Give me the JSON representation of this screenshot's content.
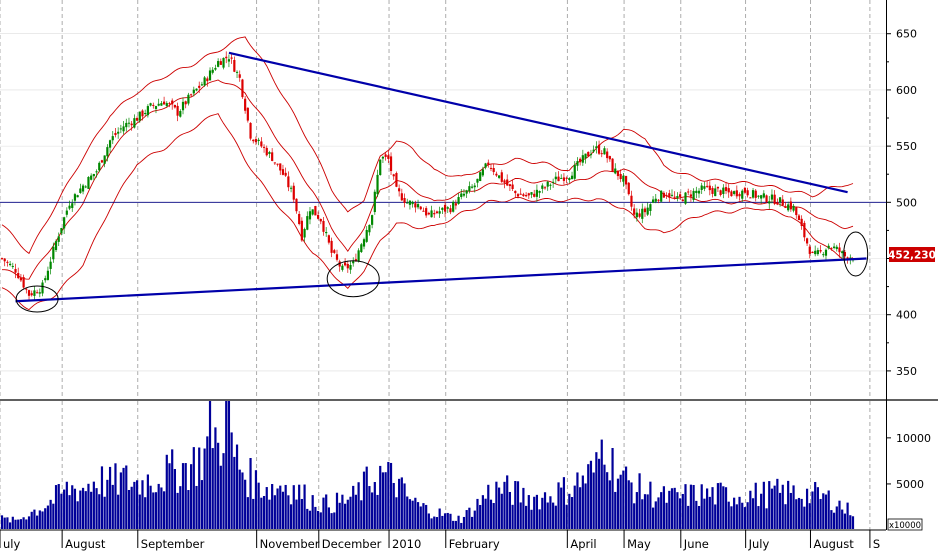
{
  "chart_data": {
    "type": "candlestick-with-volume",
    "price_axis": {
      "ticks": [
        350,
        400,
        450,
        500,
        550,
        600,
        650
      ],
      "tick_labels": [
        "350",
        "400",
        "",
        "500",
        "550",
        "600",
        "650"
      ],
      "ylim": [
        325,
        680
      ]
    },
    "volume_axis": {
      "ticks": [
        5000,
        10000
      ],
      "tick_labels": [
        "5000",
        "10000"
      ],
      "unit_label": "x10000",
      "ylim": [
        0,
        14000
      ]
    },
    "x_axis": {
      "labels": [
        "uly",
        "August",
        "September",
        "November",
        "December",
        "2010",
        "February",
        "April",
        "May",
        "June",
        "July",
        "August",
        "S"
      ],
      "label_positions": [
        0,
        23,
        51,
        95,
        118,
        144,
        165,
        210,
        231,
        252,
        276,
        300,
        322
      ]
    },
    "last_price": {
      "value": 452.23,
      "label": "452,230"
    },
    "reference_line": {
      "value": 500
    },
    "trend_lines": [
      {
        "name": "upper",
        "from": [
          84,
          633
        ],
        "to": [
          313,
          509
        ]
      },
      {
        "name": "lower",
        "from": [
          5,
          412
        ],
        "to": [
          320,
          450
        ]
      }
    ],
    "circled_points": [
      {
        "x": 13,
        "y": 414
      },
      {
        "x": 130,
        "y": 432
      },
      {
        "x": 316,
        "y": 454
      }
    ],
    "bands": {
      "upper_anchors": [
        [
          0,
          480
        ],
        [
          10,
          455
        ],
        [
          20,
          498
        ],
        [
          30,
          540
        ],
        [
          40,
          578
        ],
        [
          50,
          598
        ],
        [
          60,
          612
        ],
        [
          70,
          622
        ],
        [
          80,
          635
        ],
        [
          90,
          648
        ],
        [
          98,
          620
        ],
        [
          108,
          578
        ],
        [
          115,
          548
        ],
        [
          122,
          512
        ],
        [
          128,
          490
        ],
        [
          134,
          503
        ],
        [
          140,
          540
        ],
        [
          146,
          555
        ],
        [
          152,
          548
        ],
        [
          160,
          528
        ],
        [
          170,
          522
        ],
        [
          180,
          532
        ],
        [
          190,
          538
        ],
        [
          200,
          535
        ],
        [
          210,
          528
        ],
        [
          220,
          548
        ],
        [
          230,
          565
        ],
        [
          238,
          558
        ],
        [
          245,
          532
        ],
        [
          252,
          525
        ],
        [
          260,
          520
        ],
        [
          270,
          518
        ],
        [
          280,
          516
        ],
        [
          292,
          510
        ],
        [
          300,
          506
        ],
        [
          306,
          512
        ],
        [
          312,
          516
        ]
      ],
      "middle_anchors": [
        [
          0,
          440
        ],
        [
          10,
          432
        ],
        [
          20,
          466
        ],
        [
          30,
          500
        ],
        [
          40,
          545
        ],
        [
          50,
          572
        ],
        [
          60,
          585
        ],
        [
          70,
          595
        ],
        [
          80,
          610
        ],
        [
          90,
          598
        ],
        [
          98,
          570
        ],
        [
          108,
          535
        ],
        [
          115,
          510
        ],
        [
          122,
          478
        ],
        [
          128,
          455
        ],
        [
          134,
          478
        ],
        [
          140,
          510
        ],
        [
          146,
          520
        ],
        [
          152,
          512
        ],
        [
          160,
          500
        ],
        [
          170,
          508
        ],
        [
          180,
          515
        ],
        [
          190,
          520
        ],
        [
          200,
          518
        ],
        [
          210,
          516
        ],
        [
          220,
          525
        ],
        [
          230,
          530
        ],
        [
          238,
          518
        ],
        [
          245,
          506
        ],
        [
          252,
          504
        ],
        [
          260,
          502
        ],
        [
          270,
          500
        ],
        [
          280,
          500
        ],
        [
          292,
          497
        ],
        [
          300,
          490
        ],
        [
          306,
          482
        ],
        [
          312,
          478
        ]
      ],
      "lower_anchors": [
        [
          0,
          424
        ],
        [
          10,
          405
        ],
        [
          20,
          418
        ],
        [
          30,
          445
        ],
        [
          40,
          495
        ],
        [
          50,
          535
        ],
        [
          60,
          548
        ],
        [
          70,
          565
        ],
        [
          80,
          580
        ],
        [
          90,
          538
        ],
        [
          98,
          510
        ],
        [
          108,
          480
        ],
        [
          115,
          455
        ],
        [
          122,
          438
        ],
        [
          128,
          422
        ],
        [
          134,
          440
        ],
        [
          140,
          465
        ],
        [
          146,
          482
        ],
        [
          152,
          478
        ],
        [
          160,
          478
        ],
        [
          170,
          490
        ],
        [
          180,
          500
        ],
        [
          190,
          503
        ],
        [
          200,
          502
        ],
        [
          210,
          502
        ],
        [
          220,
          503
        ],
        [
          230,
          495
        ],
        [
          238,
          478
        ],
        [
          245,
          472
        ],
        [
          252,
          482
        ],
        [
          260,
          490
        ],
        [
          270,
          492
        ],
        [
          280,
          495
        ],
        [
          292,
          488
        ],
        [
          300,
          470
        ],
        [
          306,
          458
        ],
        [
          312,
          450
        ]
      ]
    },
    "price_anchors": [
      [
        0,
        450
      ],
      [
        5,
        440
      ],
      [
        10,
        418
      ],
      [
        15,
        425
      ],
      [
        20,
        465
      ],
      [
        25,
        500
      ],
      [
        30,
        515
      ],
      [
        35,
        528
      ],
      [
        40,
        555
      ],
      [
        45,
        568
      ],
      [
        50,
        575
      ],
      [
        55,
        585
      ],
      [
        60,
        590
      ],
      [
        65,
        580
      ],
      [
        70,
        595
      ],
      [
        75,
        608
      ],
      [
        80,
        625
      ],
      [
        84,
        630
      ],
      [
        88,
        610
      ],
      [
        92,
        560
      ],
      [
        96,
        550
      ],
      [
        100,
        540
      ],
      [
        104,
        525
      ],
      [
        108,
        505
      ],
      [
        111,
        470
      ],
      [
        114,
        495
      ],
      [
        118,
        485
      ],
      [
        122,
        455
      ],
      [
        126,
        440
      ],
      [
        130,
        445
      ],
      [
        134,
        470
      ],
      [
        137,
        490
      ],
      [
        140,
        540
      ],
      [
        143,
        538
      ],
      [
        146,
        510
      ],
      [
        150,
        500
      ],
      [
        154,
        498
      ],
      [
        158,
        488
      ],
      [
        162,
        492
      ],
      [
        166,
        495
      ],
      [
        170,
        505
      ],
      [
        175,
        515
      ],
      [
        180,
        535
      ],
      [
        185,
        520
      ],
      [
        190,
        508
      ],
      [
        195,
        505
      ],
      [
        200,
        512
      ],
      [
        205,
        520
      ],
      [
        210,
        525
      ],
      [
        215,
        538
      ],
      [
        219,
        548
      ],
      [
        223,
        545
      ],
      [
        226,
        530
      ],
      [
        230,
        520
      ],
      [
        234,
        488
      ],
      [
        238,
        492
      ],
      [
        242,
        505
      ],
      [
        246,
        508
      ],
      [
        250,
        502
      ],
      [
        255,
        508
      ],
      [
        260,
        512
      ],
      [
        265,
        510
      ],
      [
        270,
        508
      ],
      [
        275,
        510
      ],
      [
        280,
        505
      ],
      [
        285,
        503
      ],
      [
        289,
        500
      ],
      [
        293,
        495
      ],
      [
        297,
        470
      ],
      [
        300,
        452
      ],
      [
        303,
        455
      ],
      [
        306,
        462
      ],
      [
        309,
        458
      ],
      [
        312,
        452
      ]
    ],
    "volume_anchors": [
      [
        0,
        1200
      ],
      [
        5,
        1000
      ],
      [
        10,
        1800
      ],
      [
        15,
        2500
      ],
      [
        20,
        3500
      ],
      [
        25,
        4500
      ],
      [
        30,
        4500
      ],
      [
        35,
        5500
      ],
      [
        40,
        5000
      ],
      [
        45,
        5500
      ],
      [
        50,
        5000
      ],
      [
        55,
        5500
      ],
      [
        60,
        6000
      ],
      [
        65,
        6500
      ],
      [
        70,
        7000
      ],
      [
        75,
        8000
      ],
      [
        78,
        12000
      ],
      [
        80,
        8500
      ],
      [
        83,
        13500
      ],
      [
        86,
        8000
      ],
      [
        90,
        6000
      ],
      [
        95,
        5000
      ],
      [
        100,
        4500
      ],
      [
        105,
        5000
      ],
      [
        110,
        4000
      ],
      [
        115,
        3200
      ],
      [
        120,
        2800
      ],
      [
        125,
        3000
      ],
      [
        130,
        3500
      ],
      [
        135,
        5000
      ],
      [
        140,
        6000
      ],
      [
        145,
        5500
      ],
      [
        150,
        3500
      ],
      [
        155,
        2500
      ],
      [
        160,
        2000
      ],
      [
        165,
        1500
      ],
      [
        170,
        1200
      ],
      [
        175,
        2500
      ],
      [
        180,
        4000
      ],
      [
        185,
        4500
      ],
      [
        190,
        4000
      ],
      [
        195,
        3500
      ],
      [
        200,
        3500
      ],
      [
        205,
        4000
      ],
      [
        210,
        4500
      ],
      [
        215,
        5500
      ],
      [
        220,
        6500
      ],
      [
        223,
        10500
      ],
      [
        226,
        7000
      ],
      [
        230,
        5500
      ],
      [
        235,
        4500
      ],
      [
        240,
        4000
      ],
      [
        245,
        3500
      ],
      [
        250,
        3500
      ],
      [
        255,
        3800
      ],
      [
        260,
        3800
      ],
      [
        265,
        3800
      ],
      [
        270,
        3800
      ],
      [
        275,
        3800
      ],
      [
        280,
        3800
      ],
      [
        285,
        4000
      ],
      [
        290,
        4000
      ],
      [
        295,
        4000
      ],
      [
        300,
        3800
      ],
      [
        305,
        3500
      ],
      [
        309,
        3000
      ],
      [
        312,
        2200
      ]
    ]
  }
}
